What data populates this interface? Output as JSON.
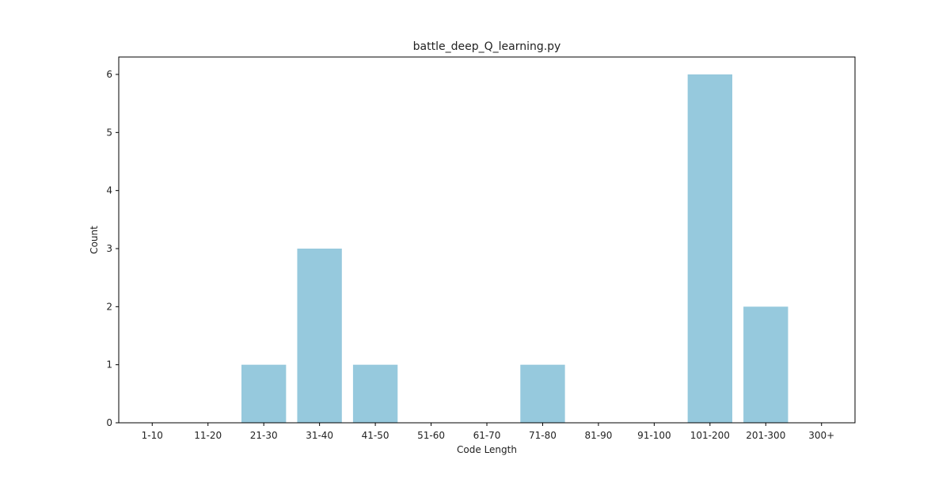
{
  "chart_data": {
    "type": "bar",
    "title": "battle_deep_Q_learning.py",
    "xlabel": "Code Length",
    "ylabel": "Count",
    "categories": [
      "1-10",
      "11-20",
      "21-30",
      "31-40",
      "41-50",
      "51-60",
      "61-70",
      "71-80",
      "81-90",
      "91-100",
      "101-200",
      "201-300",
      "300+"
    ],
    "values": [
      0,
      0,
      1,
      3,
      1,
      0,
      0,
      1,
      0,
      0,
      6,
      2,
      0
    ],
    "ylim": [
      0,
      6.3
    ],
    "yticks": [
      0,
      1,
      2,
      3,
      4,
      5,
      6
    ],
    "grid": false,
    "legend": "none",
    "bar_color": "#96c9dd"
  }
}
